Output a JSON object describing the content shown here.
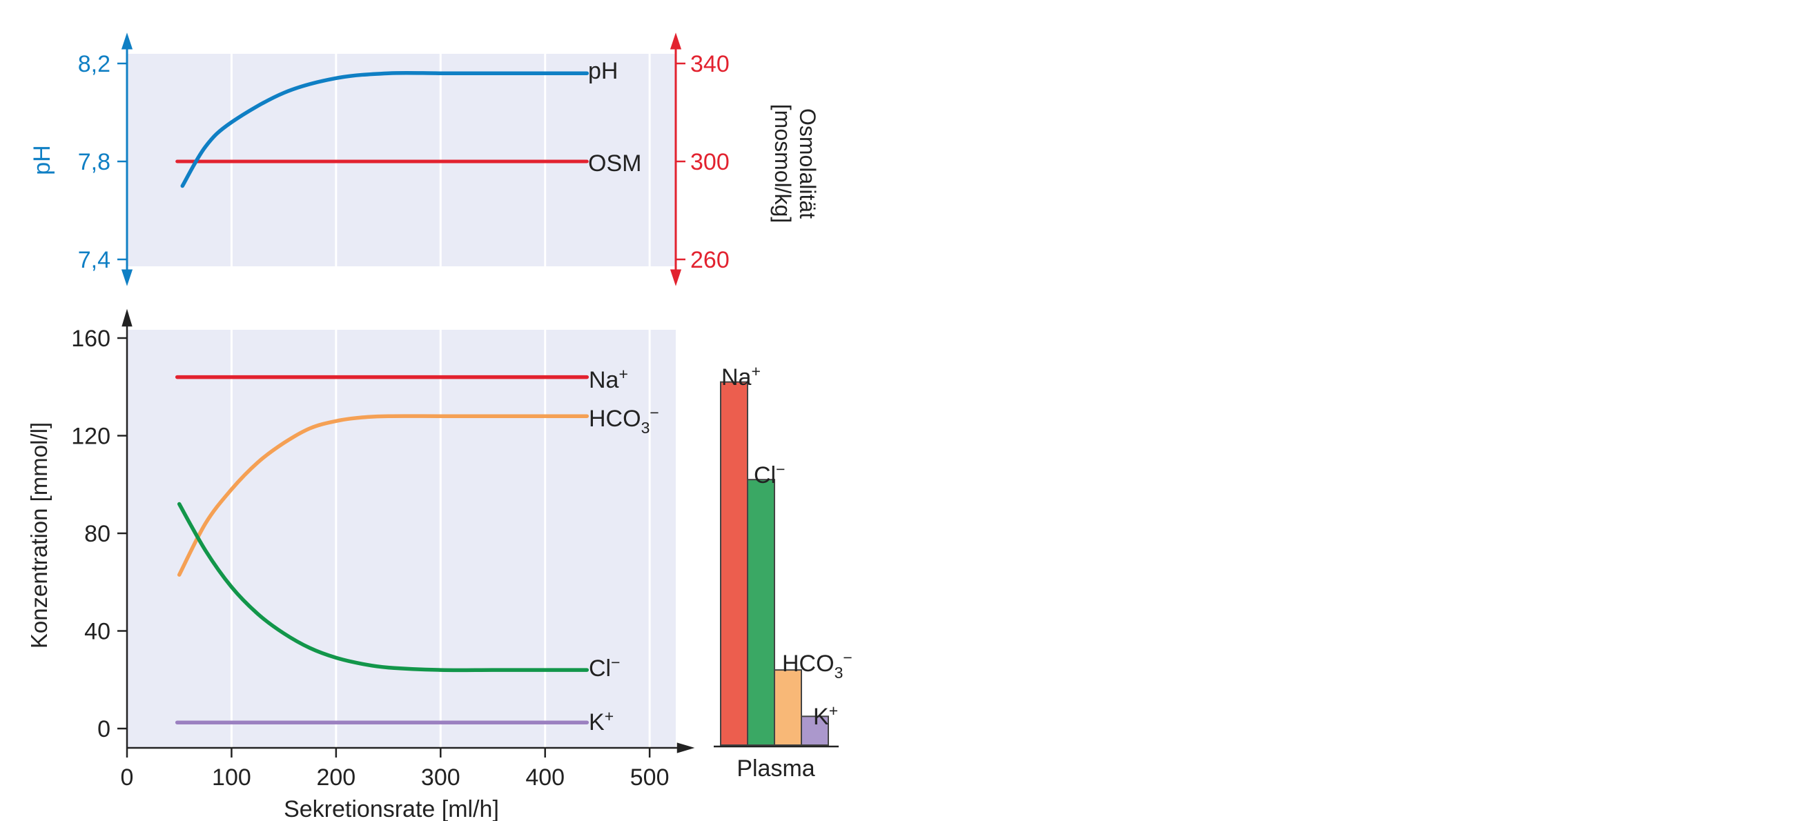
{
  "colors": {
    "panel_bg": "#e9ebf6",
    "gridline": "#ffffff",
    "axis": "#222222",
    "text": "#222222",
    "ph": "#0f7fc4",
    "osm": "#e2222f",
    "na": "#e2222f",
    "hco3": "#f5a054",
    "cl": "#12964a",
    "k": "#9b80c0",
    "bar_na": "#ec5e4e",
    "bar_cl": "#3aa864",
    "bar_hco3": "#f8b877",
    "bar_k": "#ab98cc",
    "bar_edge": "#444444"
  },
  "chart_data": [
    {
      "type": "line",
      "panel": "pH und Osmolalität",
      "xlim": [
        0,
        525
      ],
      "grid": true,
      "y_left": {
        "label": "pH",
        "ticks": [
          "7,4",
          "7,8",
          "8,2"
        ],
        "tick_values": [
          7.4,
          7.8,
          8.2
        ],
        "lim": [
          7.4,
          8.2
        ]
      },
      "y_right": {
        "label_line1": "Osmolalität",
        "label_line2": "[mosmol/kg]",
        "ticks": [
          "260",
          "300",
          "340"
        ],
        "tick_values": [
          260,
          300,
          340
        ],
        "lim": [
          260,
          340
        ]
      },
      "series": [
        {
          "name": "pH",
          "axis": "left",
          "x": [
            53,
            75,
            100,
            150,
            200,
            250,
            300,
            350,
            400,
            440
          ],
          "y": [
            7.7,
            7.86,
            7.96,
            8.08,
            8.14,
            8.16,
            8.16,
            8.16,
            8.16,
            8.16
          ]
        },
        {
          "name": "OSM",
          "axis": "right",
          "x": [
            48,
            440
          ],
          "y": [
            300,
            300
          ]
        }
      ]
    },
    {
      "type": "line",
      "panel": "Konzentration",
      "xlabel": "Sekretionsrate [ml/h]",
      "ylabel": "Konzentration [mmol/l]",
      "xlim": [
        0,
        525
      ],
      "ylim": [
        -8,
        160
      ],
      "x_ticks": [
        "0",
        "100",
        "200",
        "300",
        "400",
        "500"
      ],
      "x_tick_values": [
        0,
        100,
        200,
        300,
        400,
        500
      ],
      "y_ticks": [
        "0",
        "40",
        "80",
        "120",
        "160"
      ],
      "y_tick_values": [
        0,
        40,
        80,
        120,
        160
      ],
      "grid": true,
      "series": [
        {
          "name": "Na⁺",
          "x": [
            48,
            440
          ],
          "y": [
            144,
            144
          ]
        },
        {
          "name": "HCO₃⁻",
          "x": [
            50,
            75,
            100,
            125,
            150,
            175,
            200,
            225,
            250,
            300,
            350,
            400,
            440
          ],
          "y": [
            63,
            84,
            98,
            109,
            117,
            123,
            126,
            127.5,
            128,
            128,
            128,
            128,
            128
          ]
        },
        {
          "name": "Cl⁻",
          "x": [
            50,
            75,
            100,
            125,
            150,
            175,
            200,
            225,
            250,
            300,
            350,
            400,
            440
          ],
          "y": [
            92,
            73,
            58,
            47,
            39,
            33,
            29,
            26.5,
            25,
            24,
            24,
            24,
            24
          ]
        },
        {
          "name": "K⁺",
          "x": [
            48,
            440
          ],
          "y": [
            2.5,
            2.5
          ]
        }
      ]
    },
    {
      "type": "bar",
      "panel": "Plasma",
      "xlabel": "Plasma",
      "ylim": [
        -8,
        160
      ],
      "categories": [
        "Na⁺",
        "Cl⁻",
        "HCO₃⁻",
        "K⁺"
      ],
      "values": [
        142,
        102,
        24,
        5
      ]
    }
  ],
  "labels": {
    "ph": {
      "main": "pH"
    },
    "osm": {
      "main": "OSM"
    },
    "na": {
      "main": "Na",
      "sup": "+"
    },
    "hco3": {
      "main": "HCO",
      "sub": "3",
      "sup": "−"
    },
    "cl": {
      "main": "Cl",
      "sup": "−"
    },
    "k": {
      "main": "K",
      "sup": "+"
    }
  }
}
